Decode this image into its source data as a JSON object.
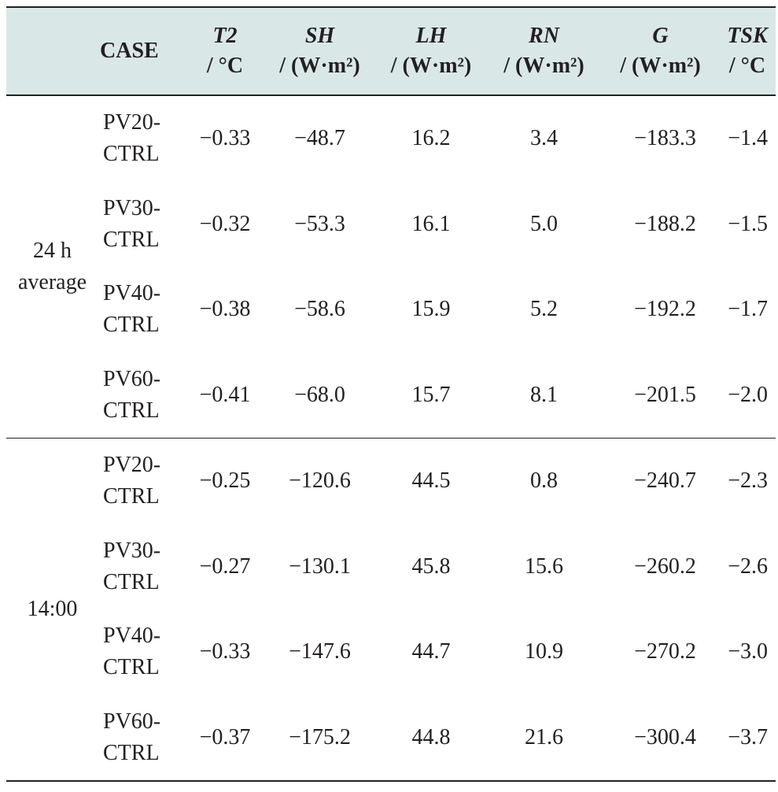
{
  "table": {
    "headers": {
      "case": "CASE",
      "t2": {
        "var": "T2",
        "unit": "/ °C"
      },
      "sh": {
        "var": "SH",
        "unit": "/ (W·m²)"
      },
      "lh": {
        "var": "LH",
        "unit": "/ (W·m²)"
      },
      "rn": {
        "var": "RN",
        "unit": "/ (W·m²)"
      },
      "g": {
        "var": "G",
        "unit": "/ (W·m²)"
      },
      "tsk": {
        "var": "TSK",
        "unit": "/ °C"
      }
    },
    "sections": [
      {
        "group_label_line1": "24 h",
        "group_label_line2": "average",
        "rows": [
          {
            "case_line1": "PV20-",
            "case_line2": "CTRL",
            "t2": "−0.33",
            "sh": "−48.7",
            "lh": "16.2",
            "rn": "3.4",
            "g": "−183.3",
            "tsk": "−1.4"
          },
          {
            "case_line1": "PV30-",
            "case_line2": "CTRL",
            "t2": "−0.32",
            "sh": "−53.3",
            "lh": "16.1",
            "rn": "5.0",
            "g": "−188.2",
            "tsk": "−1.5"
          },
          {
            "case_line1": "PV40-",
            "case_line2": "CTRL",
            "t2": "−0.38",
            "sh": "−58.6",
            "lh": "15.9",
            "rn": "5.2",
            "g": "−192.2",
            "tsk": "−1.7"
          },
          {
            "case_line1": "PV60-",
            "case_line2": "CTRL",
            "t2": "−0.41",
            "sh": "−68.0",
            "lh": "15.7",
            "rn": "8.1",
            "g": "−201.5",
            "tsk": "−2.0"
          }
        ]
      },
      {
        "group_label_line1": "14:00",
        "group_label_line2": "",
        "rows": [
          {
            "case_line1": "PV20-",
            "case_line2": "CTRL",
            "t2": "−0.25",
            "sh": "−120.6",
            "lh": "44.5",
            "rn": "0.8",
            "g": "−240.7",
            "tsk": "−2.3"
          },
          {
            "case_line1": "PV30-",
            "case_line2": "CTRL",
            "t2": "−0.27",
            "sh": "−130.1",
            "lh": "45.8",
            "rn": "15.6",
            "g": "−260.2",
            "tsk": "−2.6"
          },
          {
            "case_line1": "PV40-",
            "case_line2": "CTRL",
            "t2": "−0.33",
            "sh": "−147.6",
            "lh": "44.7",
            "rn": "10.9",
            "g": "−270.2",
            "tsk": "−3.0"
          },
          {
            "case_line1": "PV60-",
            "case_line2": "CTRL",
            "t2": "−0.37",
            "sh": "−175.2",
            "lh": "44.8",
            "rn": "21.6",
            "g": "−300.4",
            "tsk": "−3.7"
          }
        ]
      }
    ]
  },
  "colors": {
    "header_background": "#d9e8e6",
    "text": "#231f20",
    "rule": "#231f20"
  }
}
